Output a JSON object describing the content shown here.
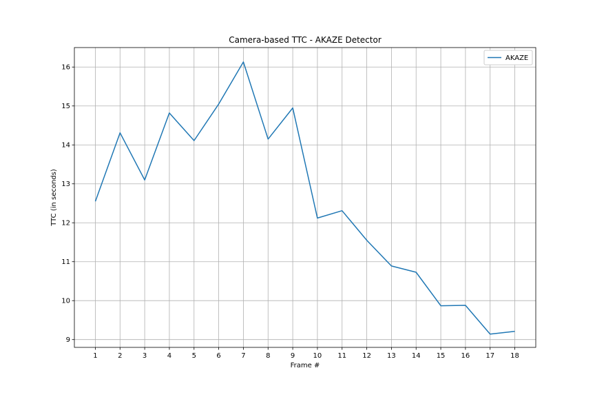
{
  "chart_data": {
    "type": "line",
    "title": "Camera-based TTC - AKAZE Detector",
    "xlabel": "Frame #",
    "ylabel": "TTC (in seconds)",
    "x": [
      1,
      2,
      3,
      4,
      5,
      6,
      7,
      8,
      9,
      10,
      11,
      12,
      13,
      14,
      15,
      16,
      17,
      18
    ],
    "series": [
      {
        "name": "AKAZE",
        "color": "#1f77b4",
        "values": [
          12.55,
          14.31,
          13.1,
          14.82,
          14.11,
          15.05,
          16.13,
          14.15,
          14.95,
          12.12,
          12.31,
          11.55,
          10.89,
          10.73,
          9.87,
          9.88,
          9.14,
          9.21
        ]
      }
    ],
    "xlim": [
      0.15,
      18.85
    ],
    "ylim": [
      8.8,
      16.5
    ],
    "xticks": [
      "1",
      "2",
      "3",
      "4",
      "5",
      "6",
      "7",
      "8",
      "9",
      "10",
      "11",
      "12",
      "13",
      "14",
      "15",
      "16",
      "17",
      "18"
    ],
    "yticks": [
      "9",
      "10",
      "11",
      "12",
      "13",
      "14",
      "15",
      "16"
    ],
    "grid": true,
    "legend_position": "top-right"
  }
}
